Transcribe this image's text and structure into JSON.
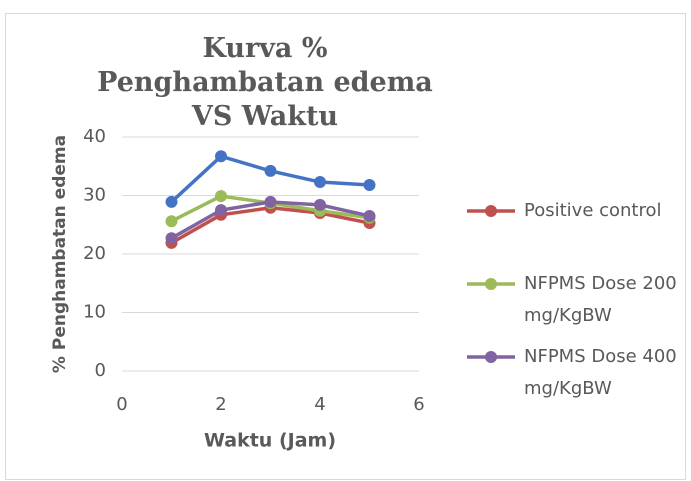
{
  "chart_data": {
    "type": "line",
    "title": "Kurva % Penghambatan edema VS Waktu",
    "x_label": "Waktu (Jam)",
    "y_label": "% Penghambatan edema",
    "series": [
      {
        "color": "#4472c4",
        "x": [
          1,
          2,
          3,
          4,
          5
        ],
        "values": [
          28.9,
          36.7,
          34.2,
          32.3,
          31.8
        ]
      },
      {
        "name": "Positive control",
        "color": "#c0504d",
        "x": [
          1,
          2,
          3,
          4,
          5
        ],
        "values": [
          21.9,
          26.7,
          27.9,
          27.0,
          25.3
        ]
      },
      {
        "name": "NFPMS Dose 200 mg/KgBW",
        "color": "#9bbb59",
        "x": [
          1,
          2,
          3,
          4,
          5
        ],
        "values": [
          25.6,
          29.9,
          28.7,
          27.4,
          26.2
        ]
      },
      {
        "name": "NFPMS Dose 400 mg/KgBW",
        "color": "#8064a2",
        "x": [
          1,
          2,
          3,
          4,
          5
        ],
        "values": [
          22.7,
          27.5,
          28.9,
          28.4,
          26.5
        ]
      }
    ],
    "xlim": [
      0,
      6
    ],
    "xticks": [
      0,
      2,
      4,
      6
    ],
    "ylim": [
      0,
      40
    ],
    "yticks": [
      0,
      10,
      20,
      30,
      40
    ],
    "grid": true,
    "legend": "right"
  }
}
